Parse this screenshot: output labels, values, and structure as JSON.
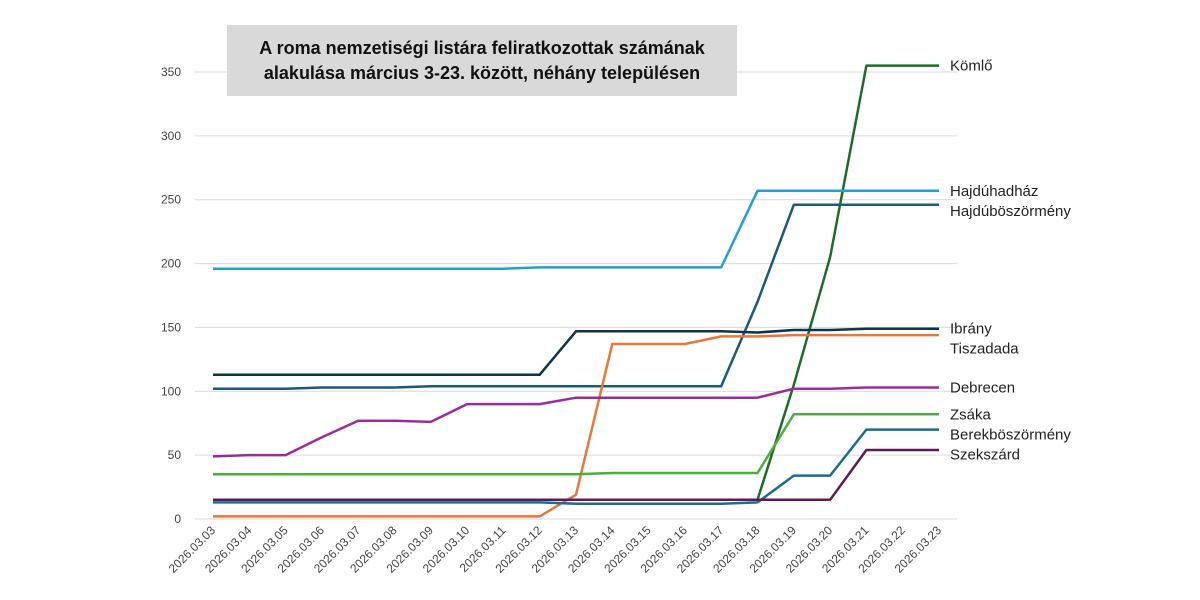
{
  "chart_data": {
    "type": "line",
    "title": [
      "A roma nemzetiségi listára feliratkozottak számának",
      "alakulása március 3-23. között, néhány településen"
    ],
    "xlabel": "",
    "ylabel": "",
    "ylim": [
      0,
      350
    ],
    "yticks": [
      0,
      50,
      100,
      150,
      200,
      250,
      300,
      350
    ],
    "grid": true,
    "legend": "direct labels at right end",
    "x": [
      "2026.03.03",
      "2026.03.04",
      "2026.03.05",
      "2026.03.06",
      "2026.03.07",
      "2026.03.08",
      "2026.03.09",
      "2026.03.10",
      "2026.03.11",
      "2026.03.12",
      "2026.03.13",
      "2026.03.14",
      "2026.03.15",
      "2026.03.16",
      "2026.03.17",
      "2026.03.18",
      "2026.03.19",
      "2026.03.20",
      "2026.03.21",
      "2026.03.22",
      "2026.03.23"
    ],
    "series": [
      {
        "name": "Kömlő",
        "color": "#1e6b2a",
        "values": [
          15,
          15,
          15,
          15,
          15,
          15,
          15,
          15,
          15,
          15,
          15,
          15,
          15,
          15,
          15,
          15,
          105,
          205,
          355,
          355,
          355
        ]
      },
      {
        "name": "Hajdúhadház",
        "color": "#23a0d0",
        "values": [
          196,
          196,
          196,
          196,
          196,
          196,
          196,
          196,
          196,
          197,
          197,
          197,
          197,
          197,
          197,
          257,
          257,
          257,
          257,
          257,
          257
        ]
      },
      {
        "name": "Hajdúböszörmény",
        "color": "#1b5a78",
        "values": [
          102,
          102,
          102,
          103,
          103,
          103,
          104,
          104,
          104,
          104,
          104,
          104,
          104,
          104,
          104,
          170,
          246,
          246,
          246,
          246,
          246
        ]
      },
      {
        "name": "Ibrány",
        "color": "#0f3347",
        "values": [
          113,
          113,
          113,
          113,
          113,
          113,
          113,
          113,
          113,
          113,
          147,
          147,
          147,
          147,
          147,
          146,
          148,
          148,
          149,
          149,
          149
        ]
      },
      {
        "name": "Tiszadada",
        "color": "#e8773a",
        "values": [
          2,
          2,
          2,
          2,
          2,
          2,
          2,
          2,
          2,
          2,
          19,
          137,
          137,
          137,
          143,
          143,
          144,
          144,
          144,
          144,
          144
        ]
      },
      {
        "name": "Debrecen",
        "color": "#9b2c9c",
        "values": [
          49,
          50,
          50,
          64,
          77,
          77,
          76,
          90,
          90,
          90,
          95,
          95,
          95,
          95,
          95,
          95,
          102,
          102,
          103,
          103,
          103
        ]
      },
      {
        "name": "Zsáka",
        "color": "#4caf3c",
        "values": [
          35,
          35,
          35,
          35,
          35,
          35,
          35,
          35,
          35,
          35,
          35,
          36,
          36,
          36,
          36,
          36,
          82,
          82,
          82,
          82,
          82
        ]
      },
      {
        "name": "Berekböszörmény",
        "color": "#1a6c93",
        "values": [
          13,
          13,
          13,
          13,
          13,
          13,
          13,
          13,
          13,
          13,
          12,
          12,
          12,
          12,
          12,
          13,
          34,
          34,
          70,
          70,
          70
        ]
      },
      {
        "name": "Szekszárd",
        "color": "#5e1a57",
        "values": [
          15,
          15,
          15,
          15,
          15,
          15,
          15,
          15,
          15,
          15,
          15,
          15,
          15,
          15,
          15,
          15,
          15,
          15,
          54,
          54,
          54
        ]
      }
    ]
  }
}
